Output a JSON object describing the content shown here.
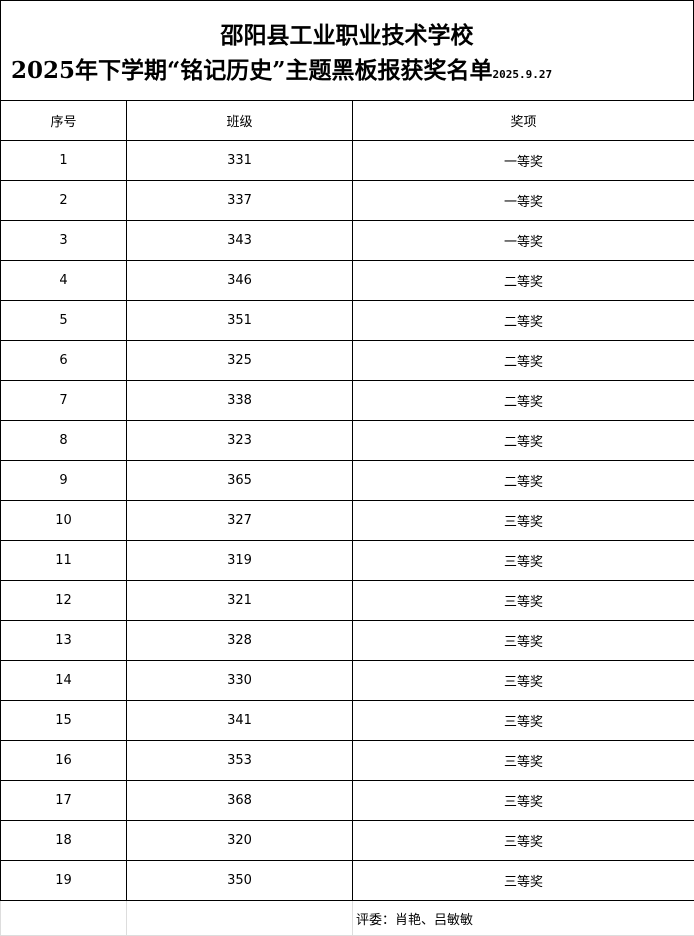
{
  "title": {
    "line1": "邵阳县工业职业技术学校",
    "line2": "2025年下学期“铭记历史”主题黑板报获奖名单",
    "date": "2025.9.27"
  },
  "headers": [
    "序号",
    "班级",
    "奖项"
  ],
  "rows": [
    [
      "1",
      "331",
      "一等奖"
    ],
    [
      "2",
      "337",
      "一等奖"
    ],
    [
      "3",
      "343",
      "一等奖"
    ],
    [
      "4",
      "346",
      "二等奖"
    ],
    [
      "5",
      "351",
      "二等奖"
    ],
    [
      "6",
      "325",
      "二等奖"
    ],
    [
      "7",
      "338",
      "二等奖"
    ],
    [
      "8",
      "323",
      "二等奖"
    ],
    [
      "9",
      "365",
      "二等奖"
    ],
    [
      "10",
      "327",
      "三等奖"
    ],
    [
      "11",
      "319",
      "三等奖"
    ],
    [
      "12",
      "321",
      "三等奖"
    ],
    [
      "13",
      "328",
      "三等奖"
    ],
    [
      "14",
      "330",
      "三等奖"
    ],
    [
      "15",
      "341",
      "三等奖"
    ],
    [
      "16",
      "353",
      "三等奖"
    ],
    [
      "17",
      "368",
      "三等奖"
    ],
    [
      "18",
      "320",
      "三等奖"
    ],
    [
      "19",
      "350",
      "三等奖"
    ]
  ],
  "footer": {
    "judges": "评委：肖艳、吕敏敏"
  }
}
